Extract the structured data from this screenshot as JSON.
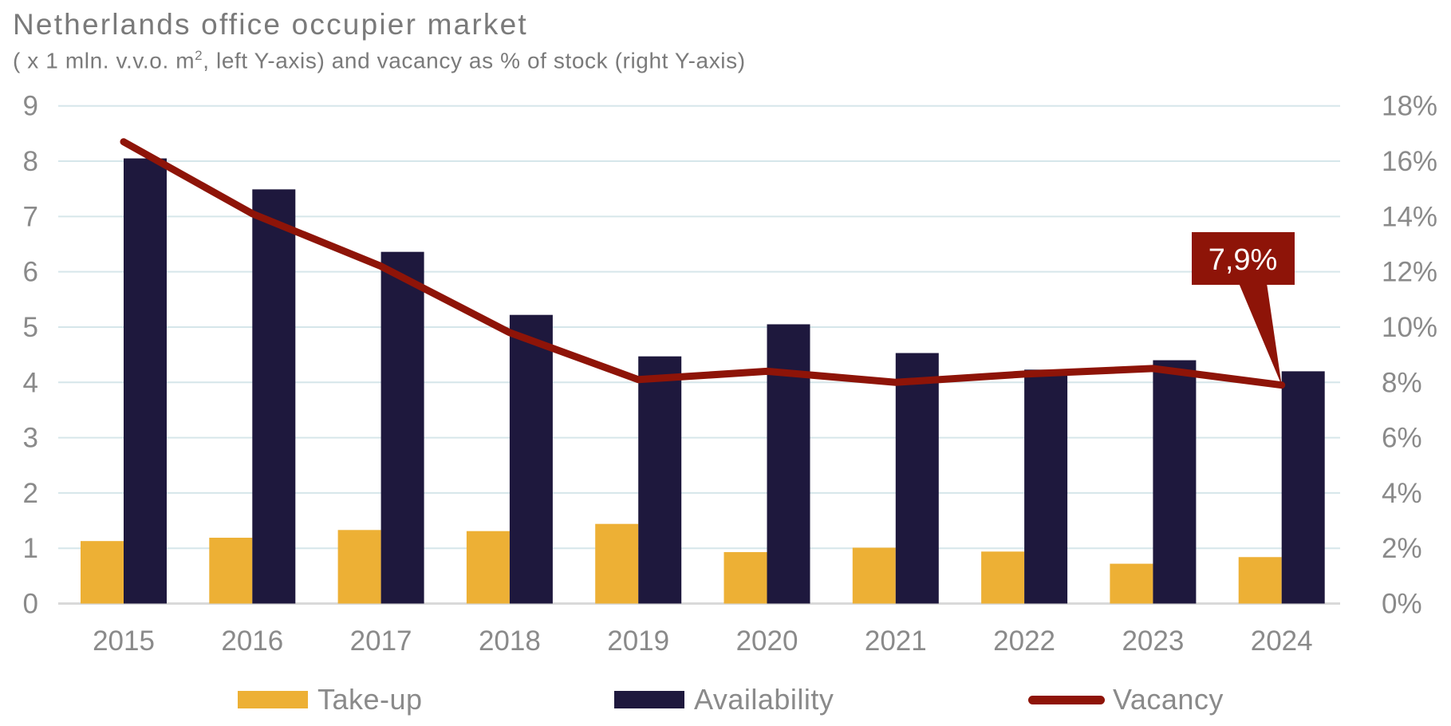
{
  "header": {
    "title": "Netherlands office occupier market",
    "subtitle_pre": "( x 1 mln. v.v.o. m",
    "subtitle_sup": "2",
    "subtitle_post": ", left Y-axis) and vacancy as % of stock (right Y-axis)"
  },
  "colors": {
    "takeup": "#EDB035",
    "availability": "#1E183D",
    "vacancy": "#8E1408",
    "grid": "#D6E6EA",
    "axis_text": "#8A8A8A",
    "annotation_bg": "#8E1408",
    "annotation_text": "#FFFFFF"
  },
  "legend": {
    "takeup": "Take-up",
    "availability": "Availability",
    "vacancy": "Vacancy"
  },
  "annotation": {
    "label": "7,9%",
    "year": "2024"
  },
  "chart_data": {
    "type": "bar",
    "title": "Netherlands office occupier market",
    "subtitle": "( x 1 mln. v.v.o. m², left Y-axis) and vacancy as % of stock (right Y-axis)",
    "categories": [
      "2015",
      "2016",
      "2017",
      "2018",
      "2019",
      "2020",
      "2021",
      "2022",
      "2023",
      "2024"
    ],
    "series": [
      {
        "name": "Take-up",
        "type": "bar",
        "axis": "left",
        "values": [
          1.13,
          1.19,
          1.33,
          1.31,
          1.44,
          0.93,
          1.01,
          0.94,
          0.72,
          0.84
        ]
      },
      {
        "name": "Availability",
        "type": "bar",
        "axis": "left",
        "values": [
          8.05,
          7.49,
          6.36,
          5.22,
          4.47,
          5.05,
          4.53,
          4.23,
          4.4,
          4.2
        ]
      },
      {
        "name": "Vacancy",
        "type": "line",
        "axis": "right",
        "unit": "%",
        "values": [
          16.7,
          14.1,
          12.2,
          9.8,
          8.1,
          8.4,
          8.0,
          8.3,
          8.5,
          7.9
        ]
      }
    ],
    "xlabel": "",
    "ylabel_left": "x 1 mln. v.v.o. m²",
    "ylabel_right": "vacancy as % of stock",
    "ylim_left": [
      0,
      9
    ],
    "ylim_right": [
      0,
      18
    ],
    "yticks_left": [
      "0",
      "1",
      "2",
      "3",
      "4",
      "5",
      "6",
      "7",
      "8",
      "9"
    ],
    "yticks_right": [
      "0%",
      "2%",
      "4%",
      "6%",
      "8%",
      "10%",
      "12%",
      "14%",
      "16%",
      "18%"
    ],
    "grid": true,
    "legend_position": "bottom",
    "annotations": [
      {
        "category": "2024",
        "series": "Vacancy",
        "text": "7,9%"
      }
    ]
  }
}
